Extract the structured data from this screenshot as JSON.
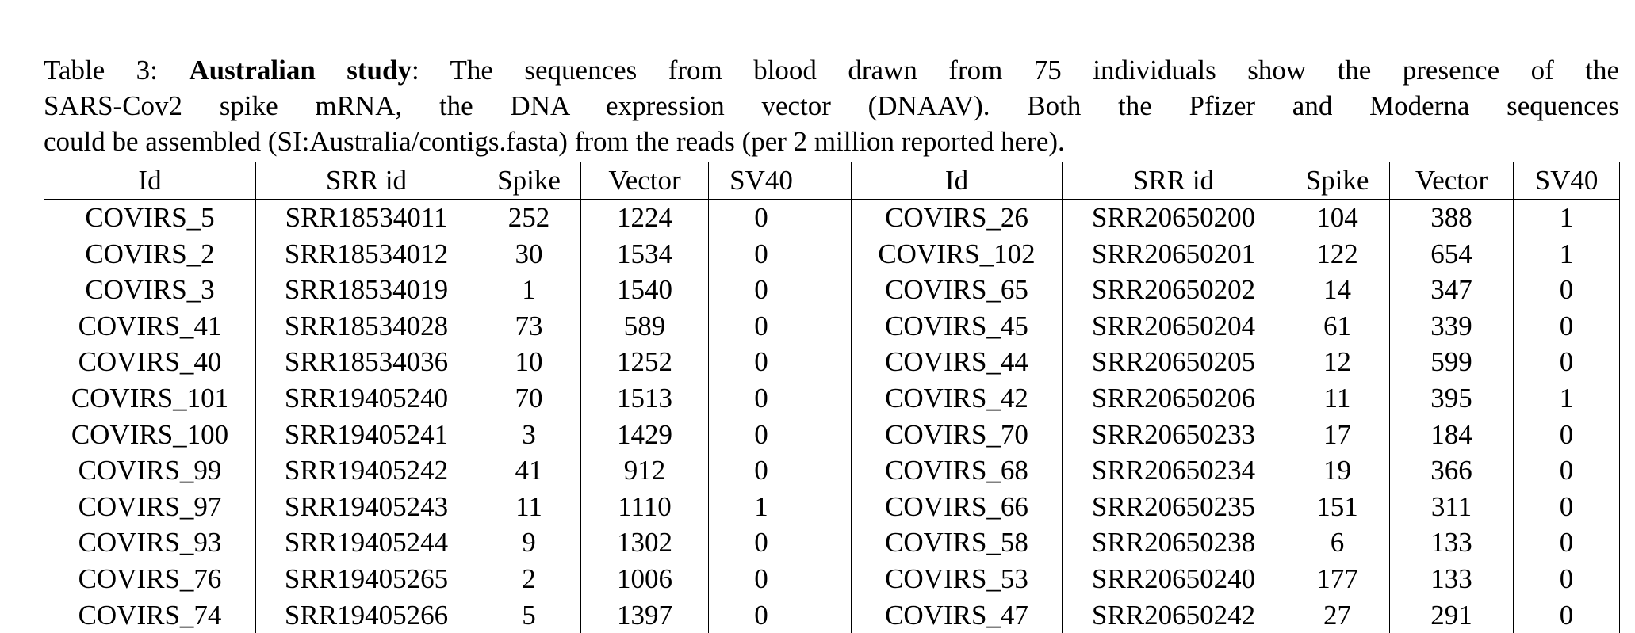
{
  "caption": {
    "label": "Table 3:",
    "bold": "Australian study",
    "lines": [
      ": The sequences from blood drawn from 75 individuals show the presence of the",
      "SARS-Cov2 spike mRNA, the DNA expression vector (DNAAV). Both the Pfizer and Moderna sequences",
      "could be assembled (SI:Australia/contigs.fasta) from the reads (per 2 million reported here)."
    ]
  },
  "table": {
    "headers": {
      "left": [
        "Id",
        "SRR id",
        "Spike",
        "Vector",
        "SV40"
      ],
      "right": [
        "Id",
        "SRR id",
        "Spike",
        "Vector",
        "SV40"
      ]
    },
    "rows": [
      {
        "left": [
          "COVIRS_5",
          "SRR18534011",
          252,
          1224,
          0
        ],
        "right": [
          "COVIRS_26",
          "SRR20650200",
          104,
          388,
          1
        ]
      },
      {
        "left": [
          "COVIRS_2",
          "SRR18534012",
          30,
          1534,
          0
        ],
        "right": [
          "COVIRS_102",
          "SRR20650201",
          122,
          654,
          1
        ]
      },
      {
        "left": [
          "COVIRS_3",
          "SRR18534019",
          1,
          1540,
          0
        ],
        "right": [
          "COVIRS_65",
          "SRR20650202",
          14,
          347,
          0
        ]
      },
      {
        "left": [
          "COVIRS_41",
          "SRR18534028",
          73,
          589,
          0
        ],
        "right": [
          "COVIRS_45",
          "SRR20650204",
          61,
          339,
          0
        ]
      },
      {
        "left": [
          "COVIRS_40",
          "SRR18534036",
          10,
          1252,
          0
        ],
        "right": [
          "COVIRS_44",
          "SRR20650205",
          12,
          599,
          0
        ]
      },
      {
        "left": [
          "COVIRS_101",
          "SRR19405240",
          70,
          1513,
          0
        ],
        "right": [
          "COVIRS_42",
          "SRR20650206",
          11,
          395,
          1
        ]
      },
      {
        "left": [
          "COVIRS_100",
          "SRR19405241",
          3,
          1429,
          0
        ],
        "right": [
          "COVIRS_70",
          "SRR20650233",
          17,
          184,
          0
        ]
      },
      {
        "left": [
          "COVIRS_99",
          "SRR19405242",
          41,
          912,
          0
        ],
        "right": [
          "COVIRS_68",
          "SRR20650234",
          19,
          366,
          0
        ]
      },
      {
        "left": [
          "COVIRS_97",
          "SRR19405243",
          11,
          1110,
          1
        ],
        "right": [
          "COVIRS_66",
          "SRR20650235",
          151,
          311,
          0
        ]
      },
      {
        "left": [
          "COVIRS_93",
          "SRR19405244",
          9,
          1302,
          0
        ],
        "right": [
          "COVIRS_58",
          "SRR20650238",
          6,
          133,
          0
        ]
      },
      {
        "left": [
          "COVIRS_76",
          "SRR19405265",
          2,
          1006,
          0
        ],
        "right": [
          "COVIRS_53",
          "SRR20650240",
          177,
          133,
          0
        ]
      },
      {
        "left": [
          "COVIRS_74",
          "SRR19405266",
          5,
          1397,
          0
        ],
        "right": [
          "COVIRS_47",
          "SRR20650242",
          27,
          291,
          0
        ]
      }
    ]
  }
}
